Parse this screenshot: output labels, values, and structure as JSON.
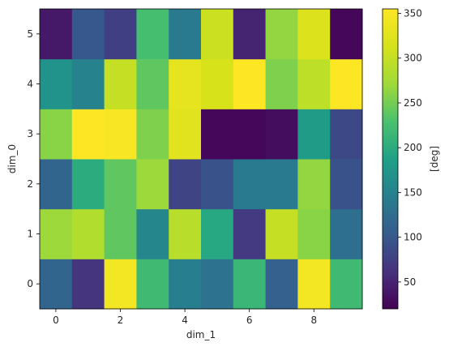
{
  "chart_data": {
    "type": "heatmap",
    "colormap": "viridis",
    "x_values": [
      0,
      1,
      2,
      3,
      4,
      5,
      6,
      7,
      8,
      9
    ],
    "y_values": [
      0,
      1,
      2,
      3,
      4,
      5
    ],
    "x_ticks": [
      "0",
      "2",
      "4",
      "6",
      "8"
    ],
    "y_ticks": [
      "0",
      "1",
      "2",
      "3",
      "4",
      "5"
    ],
    "xlabel": "dim_1",
    "ylabel": "dim_0",
    "colorbar_label": "[deg]",
    "colorbar_ticks": [
      "50",
      "100",
      "150",
      "200",
      "250",
      "300",
      "350"
    ],
    "vmin": 20,
    "vmax": 355,
    "values": [
      [
        115,
        65,
        345,
        220,
        145,
        130,
        215,
        110,
        345,
        220
      ],
      [
        270,
        285,
        240,
        155,
        290,
        195,
        70,
        300,
        260,
        125
      ],
      [
        115,
        200,
        240,
        270,
        80,
        95,
        140,
        140,
        265,
        95
      ],
      [
        260,
        355,
        350,
        255,
        325,
        25,
        25,
        30,
        180,
        85
      ],
      [
        170,
        150,
        300,
        240,
        330,
        315,
        355,
        255,
        295,
        355
      ],
      [
        40,
        100,
        75,
        225,
        140,
        305,
        50,
        265,
        320,
        25
      ]
    ]
  }
}
